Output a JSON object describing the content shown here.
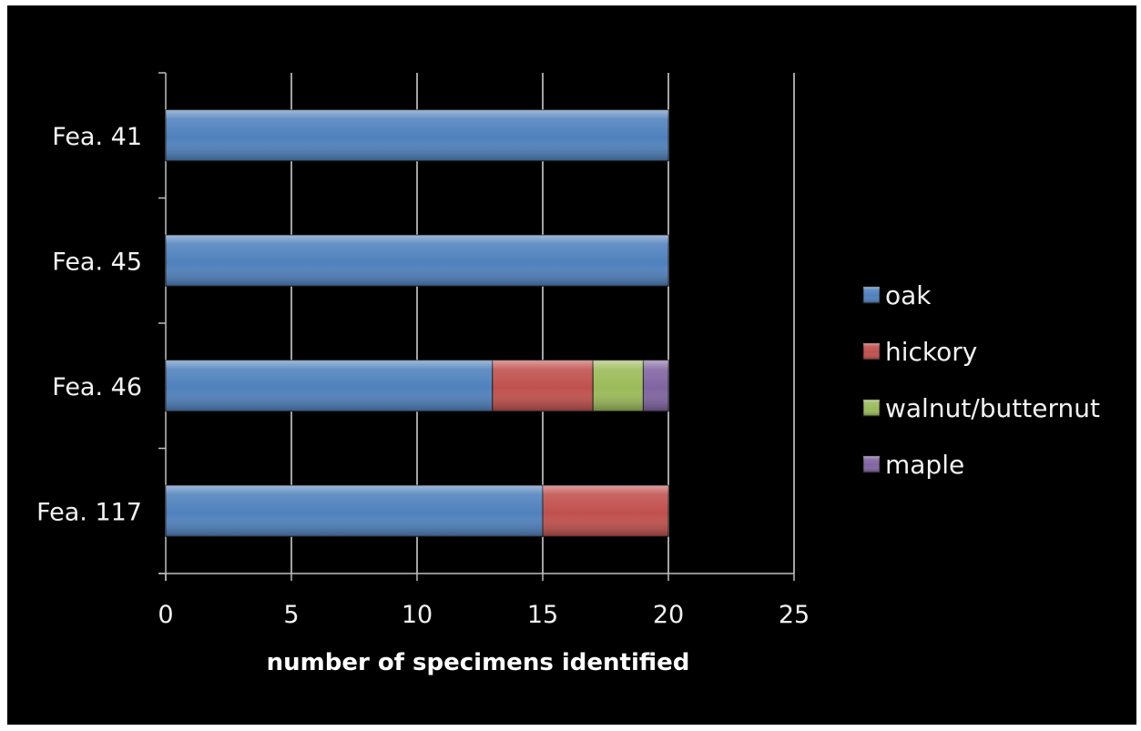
{
  "colors": {
    "background": "#000000",
    "axis": "#bfbfbf",
    "gridline": "#d9d9d9"
  },
  "chart_data": {
    "type": "bar",
    "orientation": "horizontal",
    "stacked": true,
    "categories": [
      "Fea. 41",
      "Fea. 45",
      "Fea. 46",
      "Fea. 117"
    ],
    "series": [
      {
        "name": "oak",
        "color": "#4f81bd",
        "values": [
          20,
          20,
          13,
          15
        ]
      },
      {
        "name": "hickory",
        "color": "#c0504d",
        "values": [
          0,
          0,
          4,
          5
        ]
      },
      {
        "name": "walnut/butternut",
        "color": "#9bbb59",
        "values": [
          0,
          0,
          2,
          0
        ]
      },
      {
        "name": "maple",
        "color": "#8064a2",
        "values": [
          0,
          0,
          1,
          0
        ]
      }
    ],
    "xlabel": "number of specimens identified",
    "ylabel": "",
    "title": "",
    "xlim": [
      0,
      25
    ],
    "xticks": [
      "0",
      "5",
      "10",
      "15",
      "20",
      "25"
    ],
    "grid": "vertical",
    "legend_position": "right"
  }
}
